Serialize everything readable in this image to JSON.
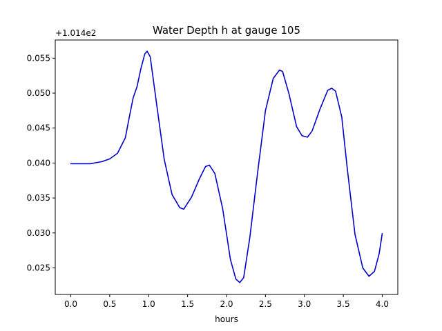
{
  "chart_data": {
    "type": "line",
    "title": "Water Depth h at gauge 105",
    "xlabel": "hours",
    "ylabel": "",
    "y_offset_label": "+1.014e2",
    "xlim": [
      -0.2,
      4.2
    ],
    "ylim": [
      0.0212,
      0.0576
    ],
    "x_ticks": [
      0.0,
      0.5,
      1.0,
      1.5,
      2.0,
      2.5,
      3.0,
      3.5,
      4.0
    ],
    "x_tick_labels": [
      "0.0",
      "0.5",
      "1.0",
      "1.5",
      "2.0",
      "2.5",
      "3.0",
      "3.5",
      "4.0"
    ],
    "y_ticks": [
      0.025,
      0.03,
      0.035,
      0.04,
      0.045,
      0.05,
      0.055
    ],
    "y_tick_labels": [
      "0.025",
      "0.030",
      "0.035",
      "0.040",
      "0.045",
      "0.050",
      "0.055"
    ],
    "grid": false,
    "series": [
      {
        "color": "#0000cc",
        "x": [
          0.0,
          0.25,
          0.4,
          0.5,
          0.6,
          0.7,
          0.75,
          0.8,
          0.85,
          0.9,
          0.95,
          0.98,
          1.02,
          1.1,
          1.2,
          1.3,
          1.4,
          1.45,
          1.55,
          1.65,
          1.73,
          1.78,
          1.85,
          1.95,
          2.05,
          2.12,
          2.17,
          2.22,
          2.3,
          2.4,
          2.5,
          2.6,
          2.68,
          2.72,
          2.8,
          2.9,
          2.97,
          3.04,
          3.1,
          3.2,
          3.3,
          3.35,
          3.4,
          3.48,
          3.55,
          3.65,
          3.75,
          3.83,
          3.9,
          3.96,
          4.0
        ],
        "y": [
          0.0399,
          0.0399,
          0.0402,
          0.0406,
          0.0414,
          0.0436,
          0.0465,
          0.0493,
          0.0509,
          0.0535,
          0.0556,
          0.056,
          0.0552,
          0.0486,
          0.0405,
          0.0355,
          0.0336,
          0.0334,
          0.0351,
          0.0377,
          0.0395,
          0.0397,
          0.0385,
          0.0335,
          0.0262,
          0.0234,
          0.0229,
          0.0236,
          0.0294,
          0.0387,
          0.0475,
          0.0521,
          0.0533,
          0.0531,
          0.05,
          0.0452,
          0.0439,
          0.0437,
          0.0446,
          0.0477,
          0.0504,
          0.0507,
          0.0503,
          0.0466,
          0.0393,
          0.0298,
          0.025,
          0.0238,
          0.0245,
          0.027,
          0.0299
        ]
      }
    ]
  }
}
